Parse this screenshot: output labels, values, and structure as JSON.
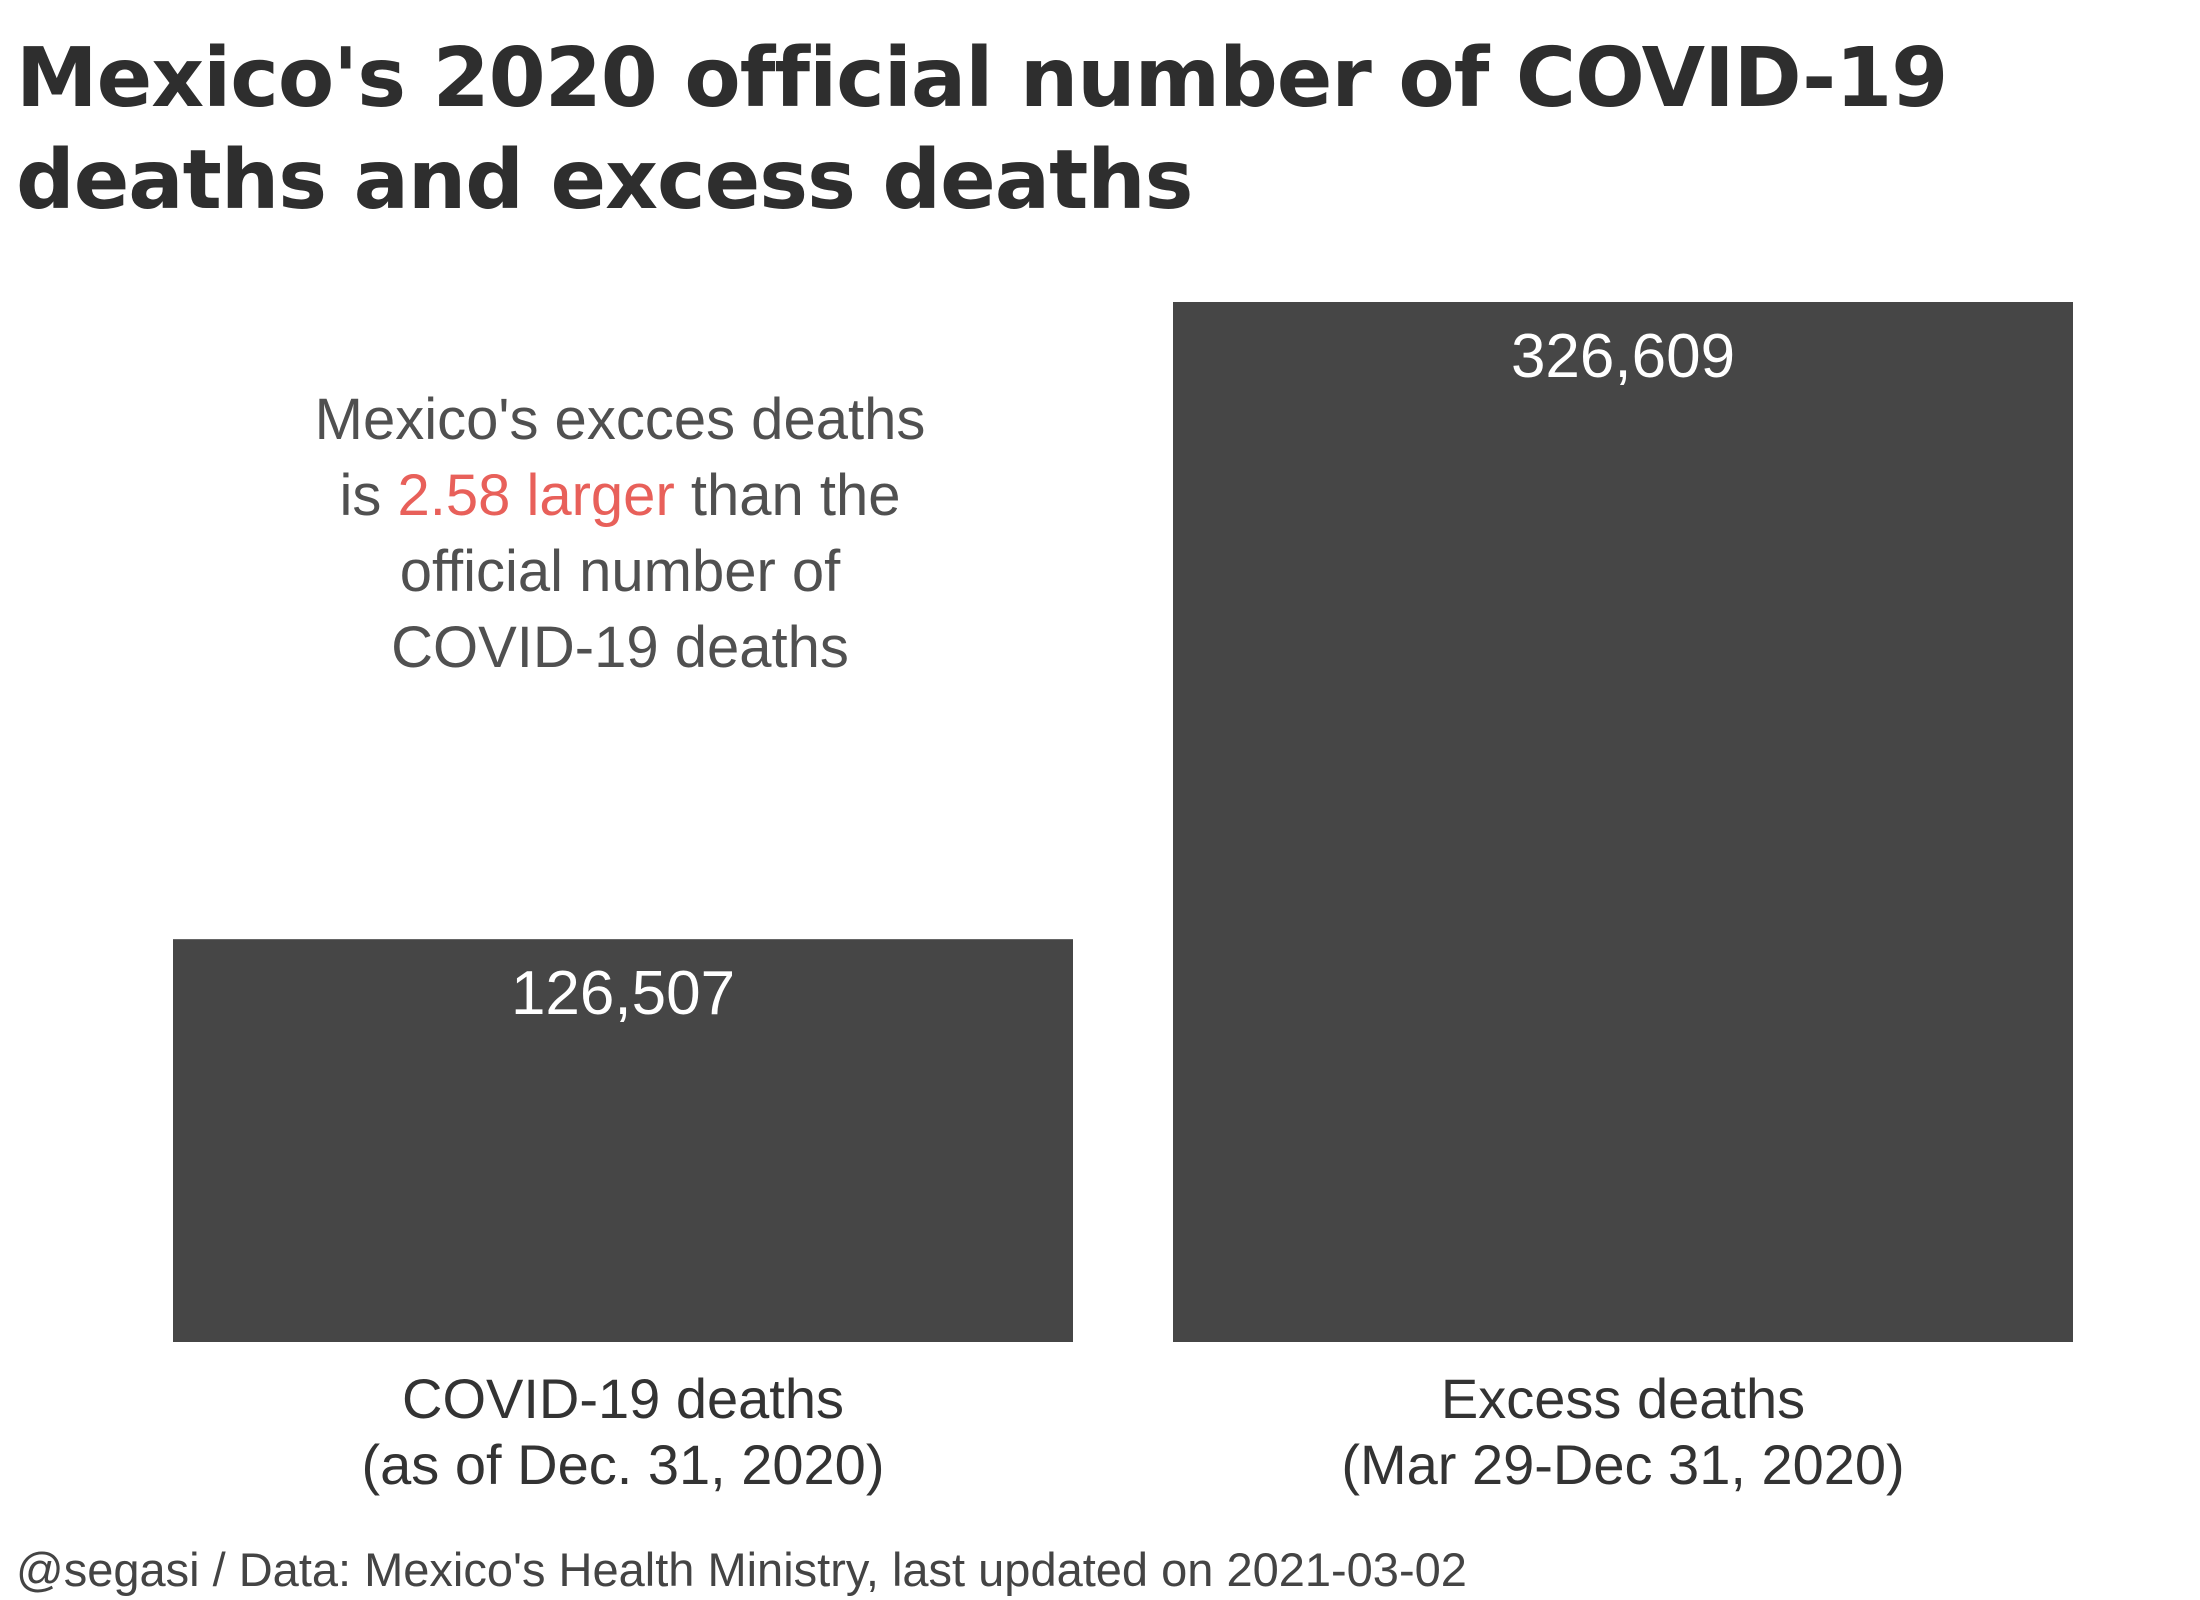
{
  "title": "Mexico's 2020 official number of COVID-19 deaths and excess deaths",
  "annotation": {
    "line1": "Mexico's excces deaths",
    "line2_pre": "is ",
    "line2_highlight": "2.58 larger",
    "line2_post": " than the",
    "line3": "official number of",
    "line4": "COVID-19 deaths",
    "highlight_color": "#e8605a"
  },
  "chart_data": {
    "type": "bar",
    "categories": [
      [
        "COVID-19 deaths",
        "(as of Dec. 31, 2020)"
      ],
      [
        "Excess deaths",
        "(Mar 29-Dec 31, 2020)"
      ]
    ],
    "values": [
      126507,
      326609
    ],
    "value_labels": [
      "126,507",
      "326,609"
    ],
    "bar_color": "#464646",
    "ylim": [
      0,
      326609
    ],
    "grid": false
  },
  "caption": "@segasi / Data: Mexico's Health Ministry, last updated on 2021-03-02"
}
